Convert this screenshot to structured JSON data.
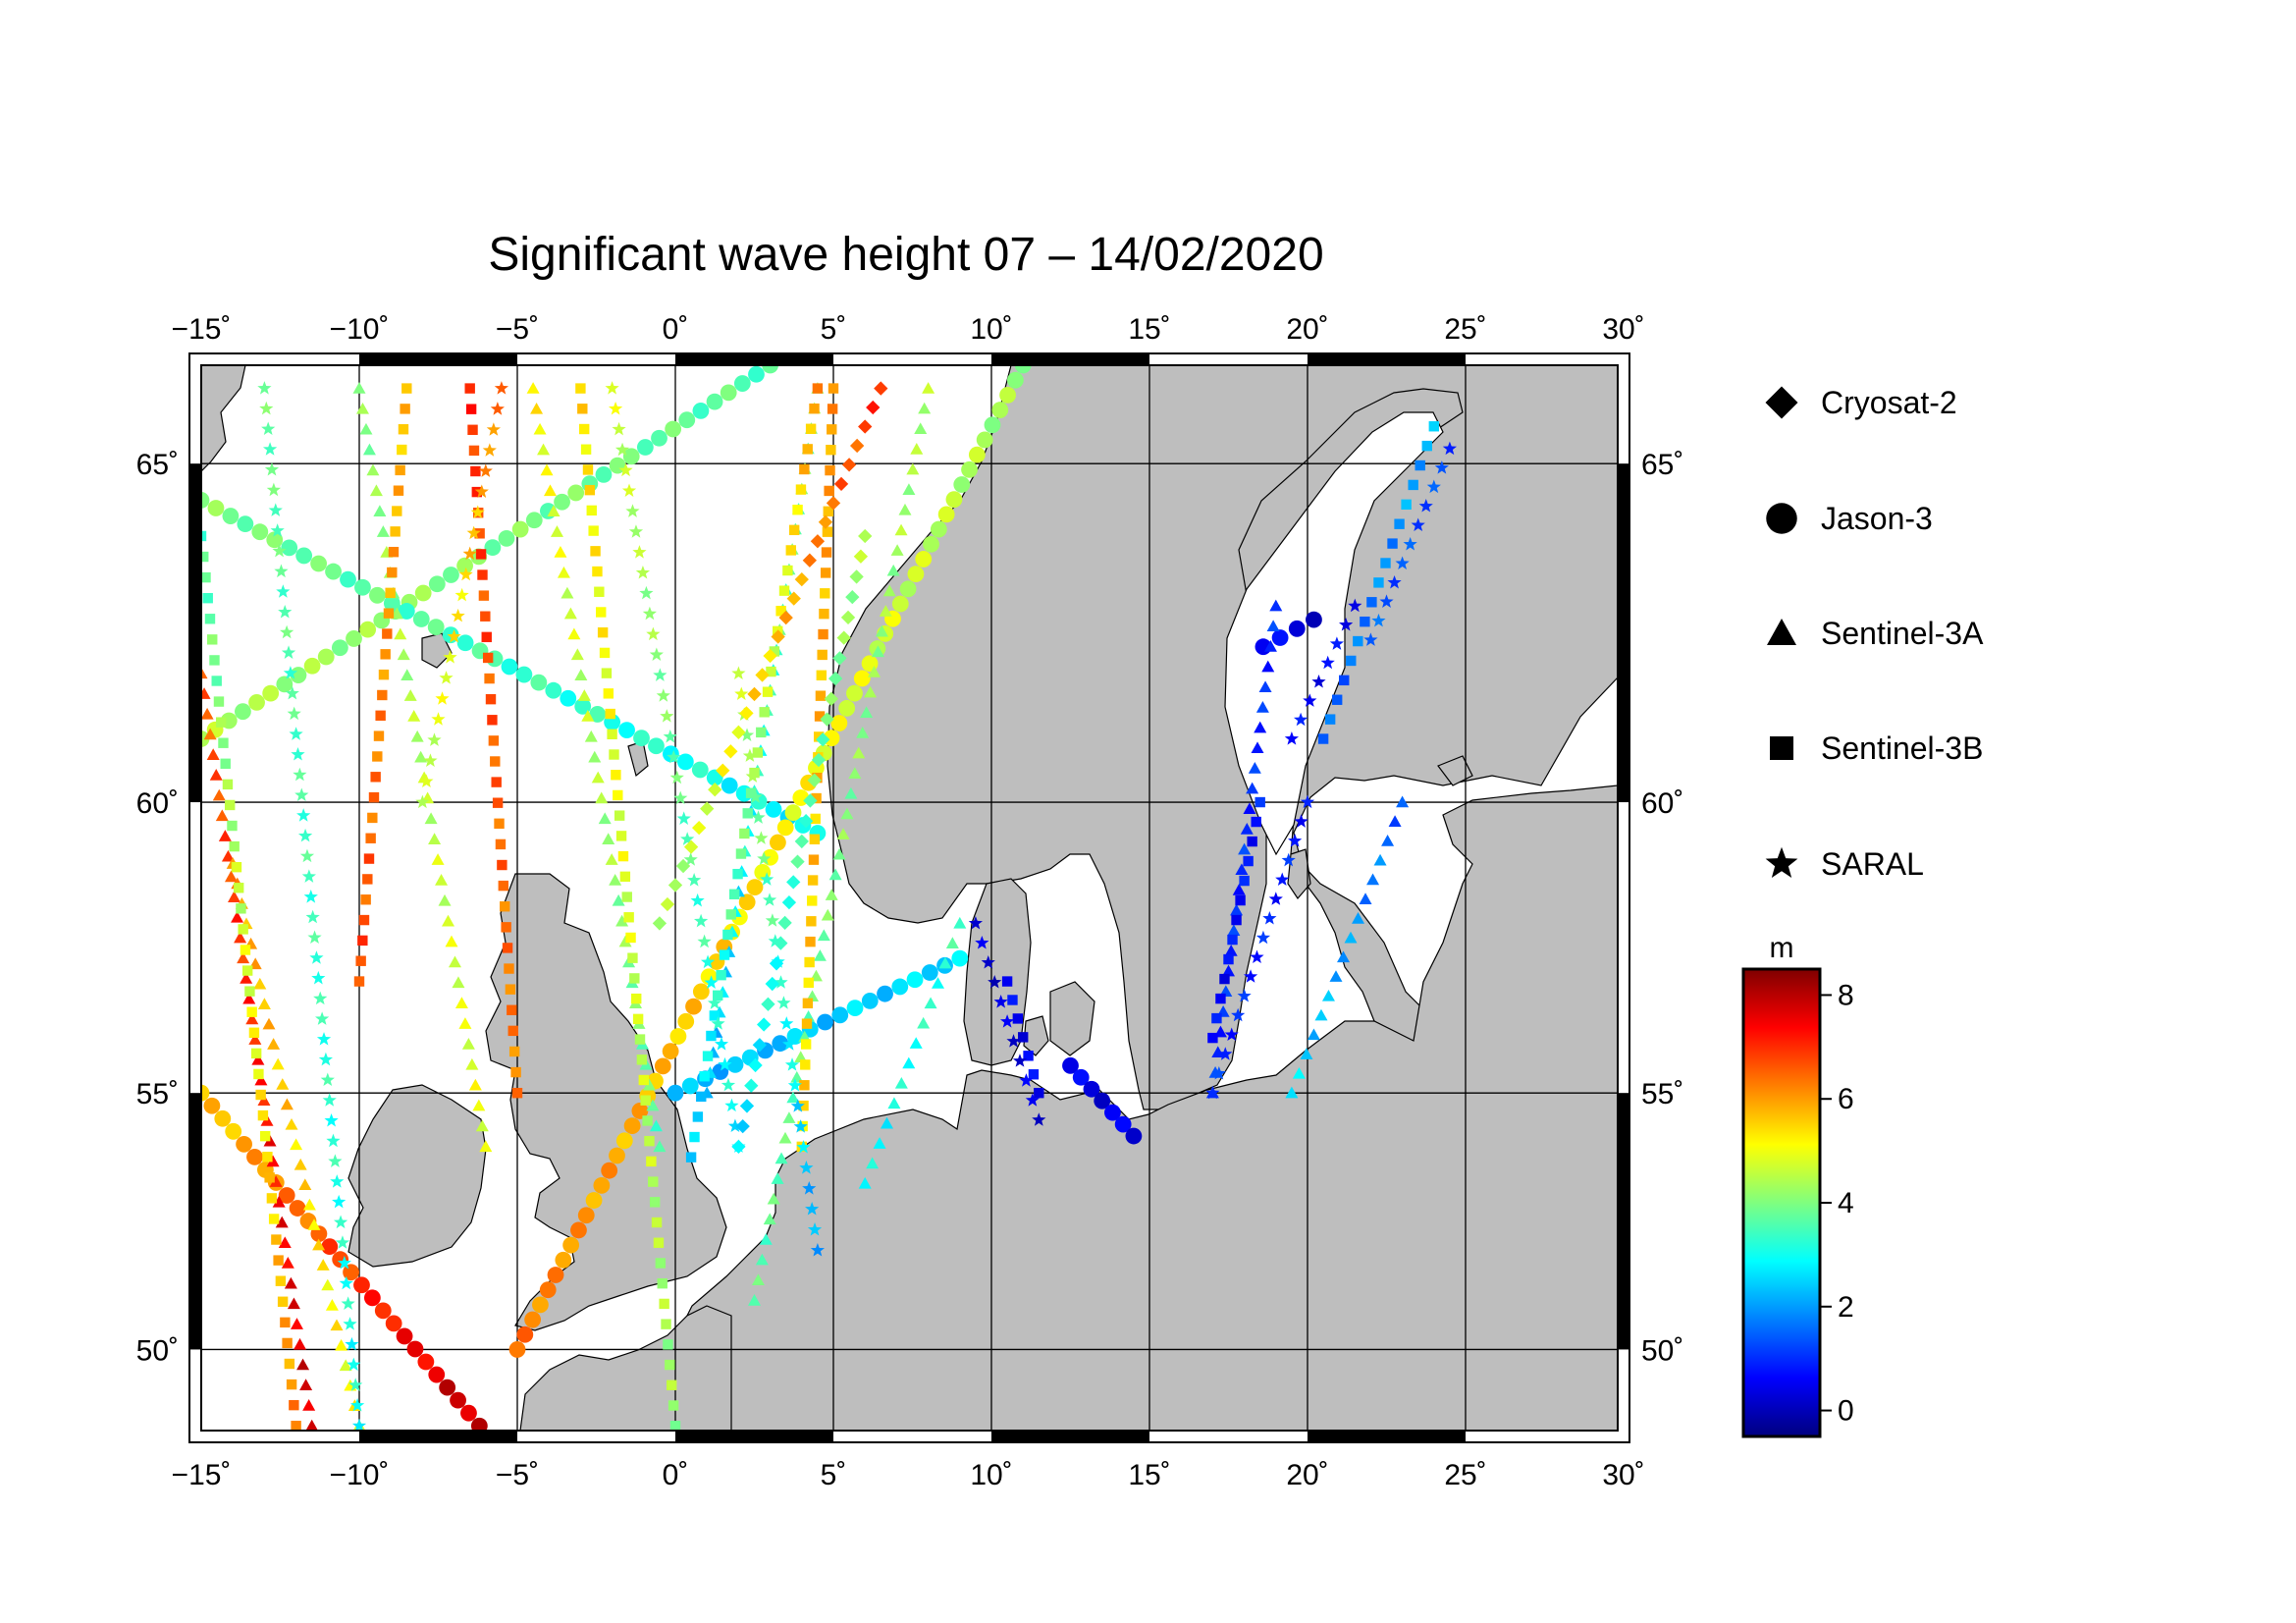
{
  "chart_data": {
    "type": "scatter",
    "title": "Significant wave height 07 – 14/02/2020",
    "x_ticks": [
      "−15˚",
      "−10˚",
      "−5˚",
      "0˚",
      "5˚",
      "10˚",
      "15˚",
      "20˚",
      "25˚",
      "30˚"
    ],
    "y_ticks": [
      "50˚",
      "55˚",
      "60˚",
      "65˚"
    ],
    "xlim": [
      -15,
      30
    ],
    "ylim": [
      48.3,
      66.3
    ],
    "grid": true,
    "legend": [
      "Cryosat-2",
      "Jason-3",
      "Sentinel-3A",
      "Sentinel-3B",
      "SARAL"
    ],
    "colorbar": {
      "unit": "m",
      "ticks": [
        "8",
        "6",
        "4",
        "2",
        "0"
      ],
      "range": [
        -0.5,
        8.5
      ]
    },
    "land_color": "#bebebe",
    "tracks": [
      {
        "satellite": "Jason-3",
        "from": [
          -15,
          61
        ],
        "to": [
          3,
          66.3
        ],
        "hs_from": 4.4,
        "hs_to": 3.6
      },
      {
        "satellite": "Jason-3",
        "from": [
          -15,
          64.5
        ],
        "to": [
          4.5,
          59.5
        ],
        "hs_from": 4.0,
        "hs_to": 2.8
      },
      {
        "satellite": "Jason-3",
        "from": [
          -5,
          50
        ],
        "to": [
          11,
          66.3
        ],
        "hs_from": 6.3,
        "hs_to": 4.2
      },
      {
        "satellite": "Jason-3",
        "from": [
          -15,
          55
        ],
        "to": [
          -6.2,
          48.4
        ],
        "hs_from": 5.5,
        "hs_to": 8.0
      },
      {
        "satellite": "Jason-3",
        "from": [
          0,
          55
        ],
        "to": [
          9,
          57.4
        ],
        "hs_from": 2.2,
        "hs_to": 2.6
      },
      {
        "satellite": "Jason-3",
        "from": [
          12.5,
          55.5
        ],
        "to": [
          14.5,
          54.2
        ],
        "hs_from": 0.4,
        "hs_to": 0.4
      },
      {
        "satellite": "Jason-3",
        "from": [
          18.6,
          62.4
        ],
        "to": [
          20.2,
          62.8
        ],
        "hs_from": 0.5,
        "hs_to": 0.3
      },
      {
        "satellite": "Sentinel-3A",
        "from": [
          -15,
          62
        ],
        "to": [
          -11.5,
          48.4
        ],
        "hs_from": 6.5,
        "hs_to": 7.8
      },
      {
        "satellite": "Sentinel-3A",
        "from": [
          -14,
          59
        ],
        "to": [
          -10,
          48.4
        ],
        "hs_from": 6.0,
        "hs_to": 5.0
      },
      {
        "satellite": "Sentinel-3A",
        "from": [
          -10,
          66
        ],
        "to": [
          -6,
          54
        ],
        "hs_from": 4.0,
        "hs_to": 5.0
      },
      {
        "satellite": "Sentinel-3A",
        "from": [
          -4.5,
          66
        ],
        "to": [
          -0.5,
          54
        ],
        "hs_from": 5.2,
        "hs_to": 3.6
      },
      {
        "satellite": "Sentinel-3A",
        "from": [
          1,
          55
        ],
        "to": [
          4.5,
          66
        ],
        "hs_from": 2.2,
        "hs_to": 4.2
      },
      {
        "satellite": "Sentinel-3A",
        "from": [
          2.5,
          51
        ],
        "to": [
          8,
          66
        ],
        "hs_from": 3.6,
        "hs_to": 4.4
      },
      {
        "satellite": "Sentinel-3A",
        "from": [
          6,
          53.3
        ],
        "to": [
          9,
          58
        ],
        "hs_from": 2.8,
        "hs_to": 3.4
      },
      {
        "satellite": "Sentinel-3A",
        "from": [
          17,
          55
        ],
        "to": [
          19,
          63
        ],
        "hs_from": 1.0,
        "hs_to": 1.0
      },
      {
        "satellite": "Sentinel-3A",
        "from": [
          19.5,
          55
        ],
        "to": [
          23,
          60
        ],
        "hs_from": 2.6,
        "hs_to": 1.4
      },
      {
        "satellite": "Sentinel-3B",
        "from": [
          -12,
          48.4
        ],
        "to": [
          -15,
          64
        ],
        "hs_from": 6.2,
        "hs_to": 3.5
      },
      {
        "satellite": "Sentinel-3B",
        "from": [
          -8.5,
          66
        ],
        "to": [
          -10,
          57
        ],
        "hs_from": 5.6,
        "hs_to": 6.8
      },
      {
        "satellite": "Sentinel-3B",
        "from": [
          -6.5,
          66
        ],
        "to": [
          -5,
          55
        ],
        "hs_from": 7.0,
        "hs_to": 6.2
      },
      {
        "satellite": "Sentinel-3B",
        "from": [
          -3,
          66
        ],
        "to": [
          0,
          48.4
        ],
        "hs_from": 5.4,
        "hs_to": 4.2
      },
      {
        "satellite": "Sentinel-3B",
        "from": [
          0.5,
          53.8
        ],
        "to": [
          4.5,
          66
        ],
        "hs_from": 2.3,
        "hs_to": 6.0
      },
      {
        "satellite": "Sentinel-3B",
        "from": [
          5,
          66
        ],
        "to": [
          4,
          54
        ],
        "hs_from": 6.0,
        "hs_to": 5.4
      },
      {
        "satellite": "Sentinel-3B",
        "from": [
          10.5,
          57
        ],
        "to": [
          11.5,
          55
        ],
        "hs_from": 0.5,
        "hs_to": 0.6
      },
      {
        "satellite": "Sentinel-3B",
        "from": [
          17,
          56
        ],
        "to": [
          18.5,
          60
        ],
        "hs_from": 0.6,
        "hs_to": 0.8
      },
      {
        "satellite": "Sentinel-3B",
        "from": [
          20.5,
          61
        ],
        "to": [
          24,
          65.5
        ],
        "hs_from": 1.4,
        "hs_to": 2.2
      },
      {
        "satellite": "SARAL",
        "from": [
          -13,
          66
        ],
        "to": [
          -10,
          48.4
        ],
        "hs_from": 3.8,
        "hs_to": 3.0
      },
      {
        "satellite": "SARAL",
        "from": [
          -8,
          60
        ],
        "to": [
          -5.5,
          66
        ],
        "hs_from": 4.4,
        "hs_to": 6.4
      },
      {
        "satellite": "SARAL",
        "from": [
          -2,
          66
        ],
        "to": [
          2,
          54
        ],
        "hs_from": 4.8,
        "hs_to": 2.8
      },
      {
        "satellite": "SARAL",
        "from": [
          2,
          62
        ],
        "to": [
          4.5,
          52
        ],
        "hs_from": 4.6,
        "hs_to": 2.0
      },
      {
        "satellite": "SARAL",
        "from": [
          9.5,
          58
        ],
        "to": [
          11.5,
          54.5
        ],
        "hs_from": 0.2,
        "hs_to": 0.4
      },
      {
        "satellite": "SARAL",
        "from": [
          17,
          55
        ],
        "to": [
          20,
          60
        ],
        "hs_from": 1.0,
        "hs_to": 0.8
      },
      {
        "satellite": "SARAL",
        "from": [
          22,
          62.5
        ],
        "to": [
          24.5,
          65.2
        ],
        "hs_from": 1.4,
        "hs_to": 1.2
      },
      {
        "satellite": "SARAL",
        "from": [
          19.5,
          61
        ],
        "to": [
          21.5,
          63
        ],
        "hs_from": 0.6,
        "hs_to": 0.6
      },
      {
        "satellite": "Cryosat-2",
        "from": [
          -0.5,
          58
        ],
        "to": [
          6.5,
          66
        ],
        "hs_from": 4.2,
        "hs_to": 7.0
      },
      {
        "satellite": "Cryosat-2",
        "from": [
          6,
          64
        ],
        "to": [
          2,
          54
        ],
        "hs_from": 4.4,
        "hs_to": 2.6
      }
    ]
  }
}
